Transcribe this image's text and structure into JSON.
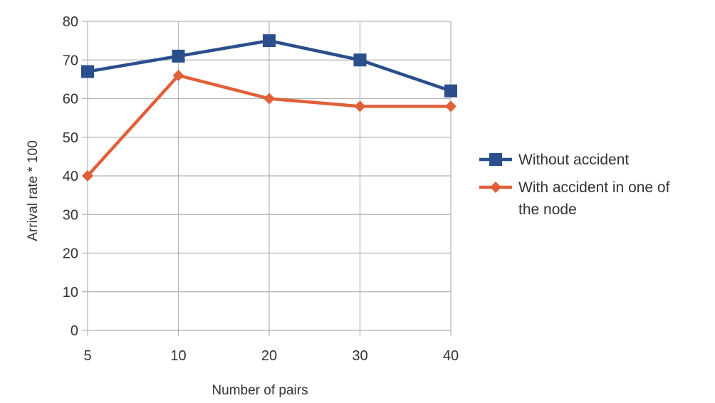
{
  "chart_data": {
    "type": "line",
    "title": "",
    "xlabel": "Number of pairs",
    "ylabel": "Arrival rate * 100",
    "categories": [
      "5",
      "10",
      "20",
      "30",
      "40"
    ],
    "ylim": [
      0,
      80
    ],
    "yticks": [
      0,
      10,
      20,
      30,
      40,
      50,
      60,
      70,
      80
    ],
    "grid": true,
    "legend_position": "right",
    "series": [
      {
        "name": "Without accident",
        "values": [
          67,
          71,
          75,
          70,
          62
        ],
        "color": "#2a4f8c",
        "marker": "square"
      },
      {
        "name": "With accident in one of the node",
        "values": [
          40,
          66,
          60,
          58,
          58
        ],
        "color": "#e0603a",
        "marker": "diamond"
      }
    ]
  }
}
